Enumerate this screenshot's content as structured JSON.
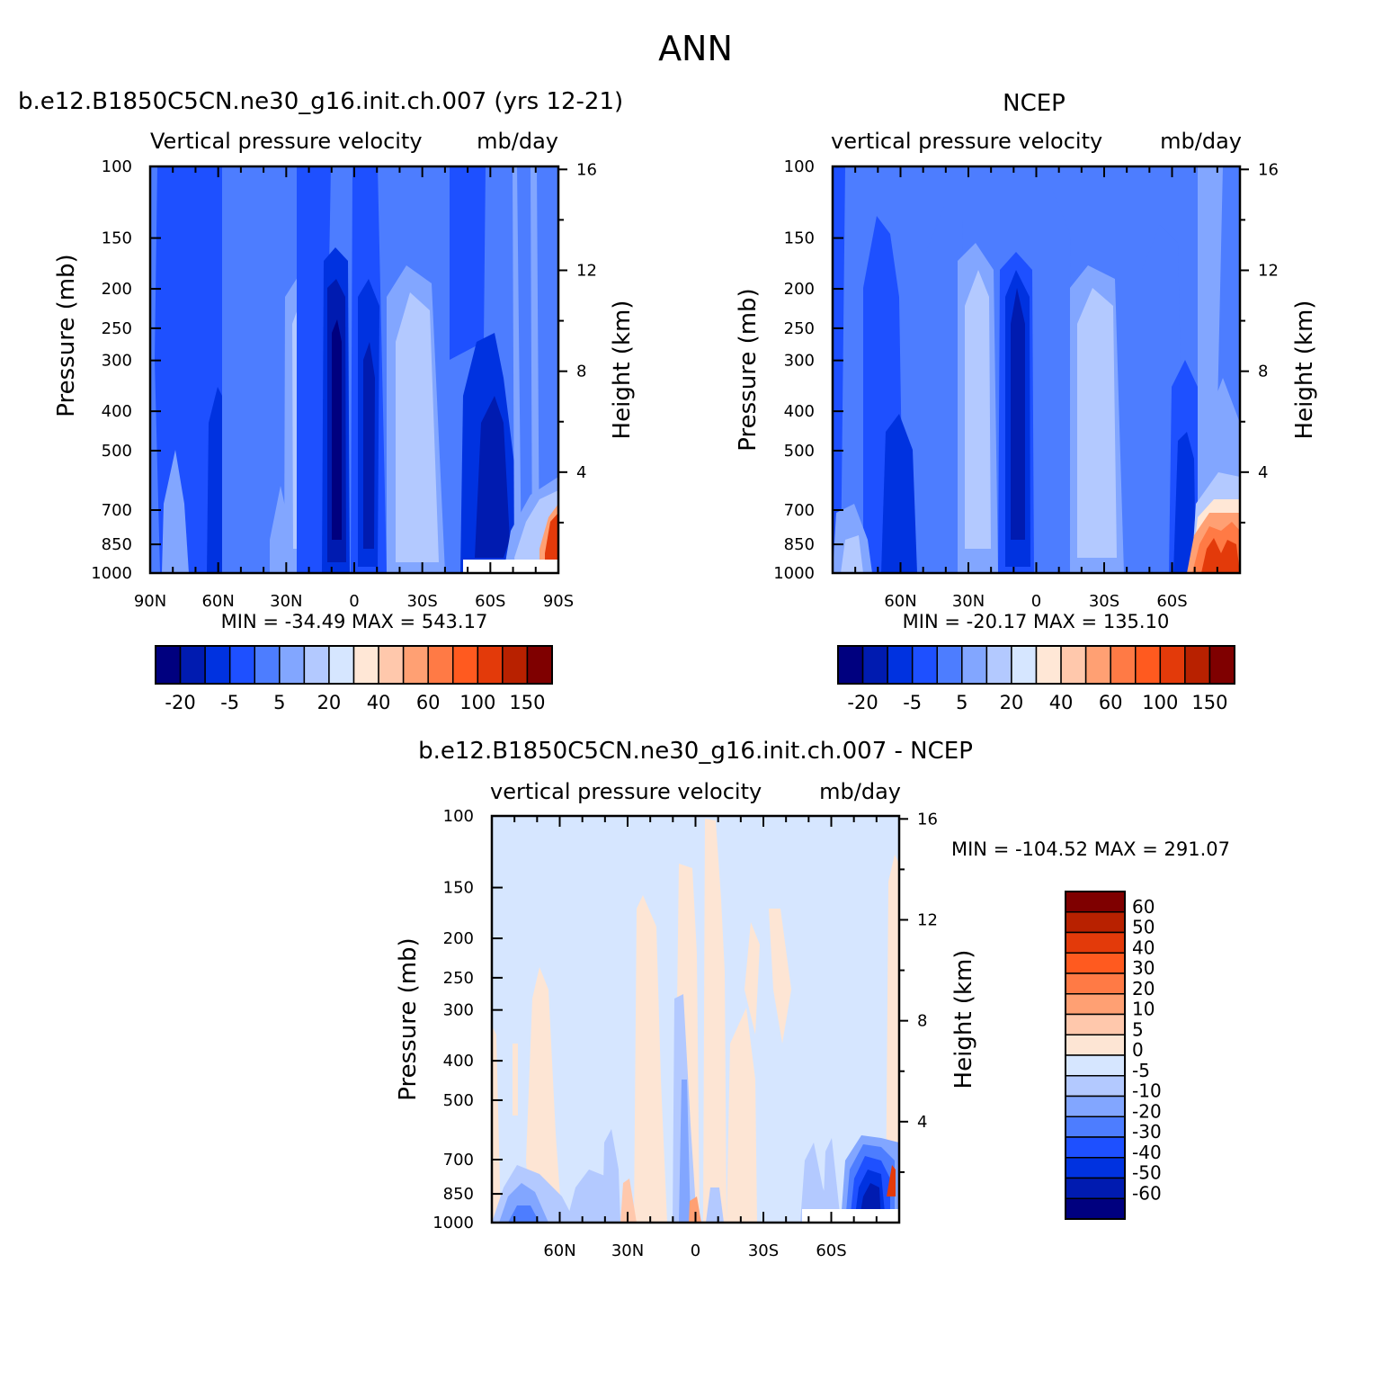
{
  "main_title": "ANN",
  "panels": {
    "model": {
      "title": "b.e12.B1850C5CN.ne30_g16.init.ch.007 (yrs 12-21)",
      "variable": "Vertical pressure velocity",
      "units": "mb/day",
      "minmax": "MIN = -34.49   MAX = 543.17"
    },
    "obs": {
      "title": "NCEP",
      "variable": "vertical pressure velocity",
      "units": "mb/day",
      "minmax": "MIN = -20.17   MAX = 135.10"
    },
    "diff": {
      "title": "b.e12.B1850C5CN.ne30_g16.init.ch.007 - NCEP",
      "variable": "vertical pressure velocity",
      "units": "mb/day",
      "minmax": "MIN = -104.52   MAX = 291.07"
    }
  },
  "chart_data": [
    {
      "type": "heatmap",
      "xlabel": "",
      "ylabel": "Pressure (mb)",
      "y2label": "Height (km)",
      "x_ticklabels": [
        "90N",
        "60N",
        "30N",
        "0",
        "30S",
        "60S",
        "90S"
      ],
      "x_tickvalues": [
        90,
        60,
        30,
        0,
        -30,
        -60,
        -90
      ],
      "y_ticklabels": [
        "100",
        "150",
        "200",
        "250",
        "300",
        "400",
        "500",
        "700",
        "850",
        "1000"
      ],
      "y2_ticklabels": [
        "16",
        "12",
        "8",
        "4"
      ],
      "ylim": [
        1000,
        100
      ],
      "yscale": "log",
      "colorbar": [
        "-20",
        "-5",
        "5",
        "20",
        "40",
        "60",
        "100",
        "150"
      ]
    },
    {
      "type": "heatmap",
      "xlabel": "",
      "ylabel": "Pressure (mb)",
      "y2label": "Height (km)",
      "x_ticklabels": [
        "60N",
        "30N",
        "0",
        "30S",
        "60S"
      ],
      "x_tickvalues": [
        60,
        30,
        0,
        -30,
        -60
      ],
      "y_ticklabels": [
        "100",
        "150",
        "200",
        "250",
        "300",
        "400",
        "500",
        "700",
        "850",
        "1000"
      ],
      "y2_ticklabels": [
        "16",
        "12",
        "8",
        "4"
      ],
      "ylim": [
        1000,
        100
      ],
      "yscale": "log",
      "colorbar": [
        "-20",
        "-5",
        "5",
        "20",
        "40",
        "60",
        "100",
        "150"
      ]
    },
    {
      "type": "heatmap",
      "xlabel": "",
      "ylabel": "Pressure (mb)",
      "y2label": "Height (km)",
      "x_ticklabels": [
        "60N",
        "30N",
        "0",
        "30S",
        "60S"
      ],
      "x_tickvalues": [
        60,
        30,
        0,
        -30,
        -60
      ],
      "y_ticklabels": [
        "100",
        "150",
        "200",
        "250",
        "300",
        "400",
        "500",
        "700",
        "850",
        "1000"
      ],
      "y2_ticklabels": [
        "16",
        "12",
        "8",
        "4"
      ],
      "ylim": [
        1000,
        100
      ],
      "yscale": "log",
      "colorbar": [
        "60",
        "50",
        "40",
        "30",
        "20",
        "10",
        "5",
        "0",
        "-5",
        "-10",
        "-20",
        "-30",
        "-40",
        "-50",
        "-60"
      ]
    }
  ],
  "colors": {
    "scale16": [
      "#00007f",
      "#001bb0",
      "#0032e0",
      "#1e50ff",
      "#4d7dff",
      "#82a6ff",
      "#b3c9ff",
      "#d6e6ff",
      "#ffe7d6",
      "#ffc8ac",
      "#ffa073",
      "#ff7a45",
      "#ff5a1f",
      "#e33a0a",
      "#b82100",
      "#7f0000"
    ],
    "diff16": [
      "#00007f",
      "#001bb0",
      "#0032e0",
      "#1e50ff",
      "#4d7dff",
      "#82a6ff",
      "#b3c9ff",
      "#d6e6ff",
      "#fde5d4",
      "#ffc8ac",
      "#ffa073",
      "#ff7a45",
      "#ff5a1f",
      "#e33a0a",
      "#b82100",
      "#7f0000"
    ]
  }
}
